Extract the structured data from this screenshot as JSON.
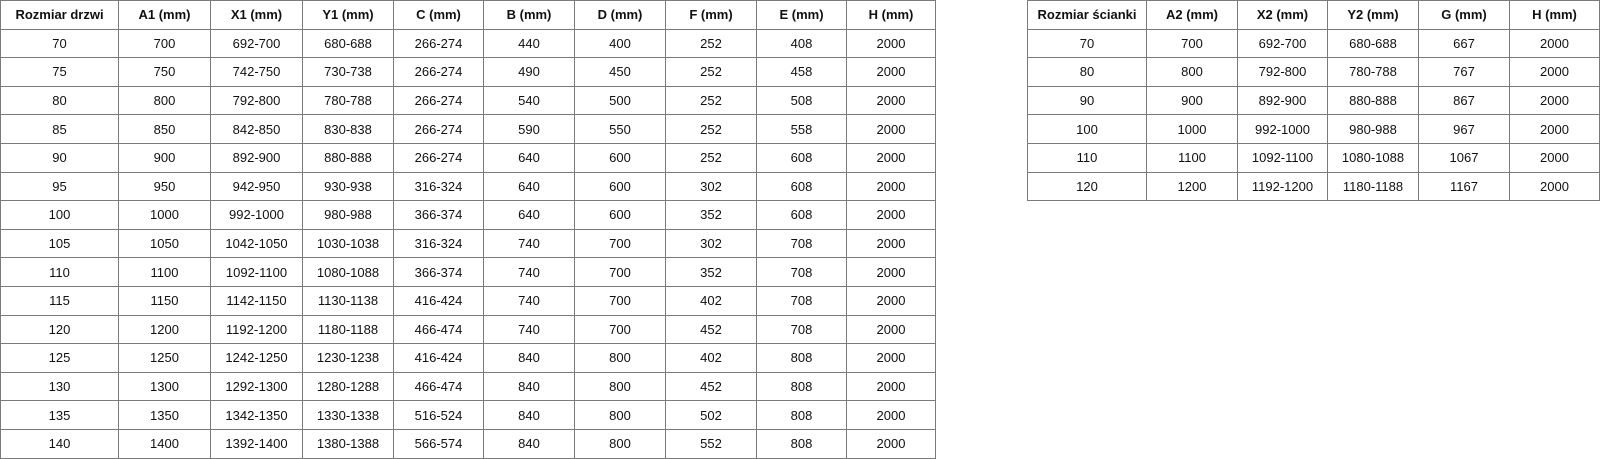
{
  "doors_table": {
    "headers": [
      "Rozmiar drzwi",
      "A1 (mm)",
      "X1 (mm)",
      "Y1 (mm)",
      "C (mm)",
      "B (mm)",
      "D (mm)",
      "F (mm)",
      "E (mm)",
      "H (mm)"
    ],
    "rows": [
      [
        "70",
        "700",
        "692-700",
        "680-688",
        "266-274",
        "440",
        "400",
        "252",
        "408",
        "2000"
      ],
      [
        "75",
        "750",
        "742-750",
        "730-738",
        "266-274",
        "490",
        "450",
        "252",
        "458",
        "2000"
      ],
      [
        "80",
        "800",
        "792-800",
        "780-788",
        "266-274",
        "540",
        "500",
        "252",
        "508",
        "2000"
      ],
      [
        "85",
        "850",
        "842-850",
        "830-838",
        "266-274",
        "590",
        "550",
        "252",
        "558",
        "2000"
      ],
      [
        "90",
        "900",
        "892-900",
        "880-888",
        "266-274",
        "640",
        "600",
        "252",
        "608",
        "2000"
      ],
      [
        "95",
        "950",
        "942-950",
        "930-938",
        "316-324",
        "640",
        "600",
        "302",
        "608",
        "2000"
      ],
      [
        "100",
        "1000",
        "992-1000",
        "980-988",
        "366-374",
        "640",
        "600",
        "352",
        "608",
        "2000"
      ],
      [
        "105",
        "1050",
        "1042-1050",
        "1030-1038",
        "316-324",
        "740",
        "700",
        "302",
        "708",
        "2000"
      ],
      [
        "110",
        "1100",
        "1092-1100",
        "1080-1088",
        "366-374",
        "740",
        "700",
        "352",
        "708",
        "2000"
      ],
      [
        "115",
        "1150",
        "1142-1150",
        "1130-1138",
        "416-424",
        "740",
        "700",
        "402",
        "708",
        "2000"
      ],
      [
        "120",
        "1200",
        "1192-1200",
        "1180-1188",
        "466-474",
        "740",
        "700",
        "452",
        "708",
        "2000"
      ],
      [
        "125",
        "1250",
        "1242-1250",
        "1230-1238",
        "416-424",
        "840",
        "800",
        "402",
        "808",
        "2000"
      ],
      [
        "130",
        "1300",
        "1292-1300",
        "1280-1288",
        "466-474",
        "840",
        "800",
        "452",
        "808",
        "2000"
      ],
      [
        "135",
        "1350",
        "1342-1350",
        "1330-1338",
        "516-524",
        "840",
        "800",
        "502",
        "808",
        "2000"
      ],
      [
        "140",
        "1400",
        "1392-1400",
        "1380-1388",
        "566-574",
        "840",
        "800",
        "552",
        "808",
        "2000"
      ]
    ]
  },
  "panels_table": {
    "headers": [
      "Rozmiar ścianki",
      "A2 (mm)",
      "X2 (mm)",
      "Y2 (mm)",
      "G (mm)",
      "H (mm)"
    ],
    "rows": [
      [
        "70",
        "700",
        "692-700",
        "680-688",
        "667",
        "2000"
      ],
      [
        "80",
        "800",
        "792-800",
        "780-788",
        "767",
        "2000"
      ],
      [
        "90",
        "900",
        "892-900",
        "880-888",
        "867",
        "2000"
      ],
      [
        "100",
        "1000",
        "992-1000",
        "980-988",
        "967",
        "2000"
      ],
      [
        "110",
        "1100",
        "1092-1100",
        "1080-1088",
        "1067",
        "2000"
      ],
      [
        "120",
        "1200",
        "1192-1200",
        "1180-1188",
        "1167",
        "2000"
      ]
    ]
  }
}
